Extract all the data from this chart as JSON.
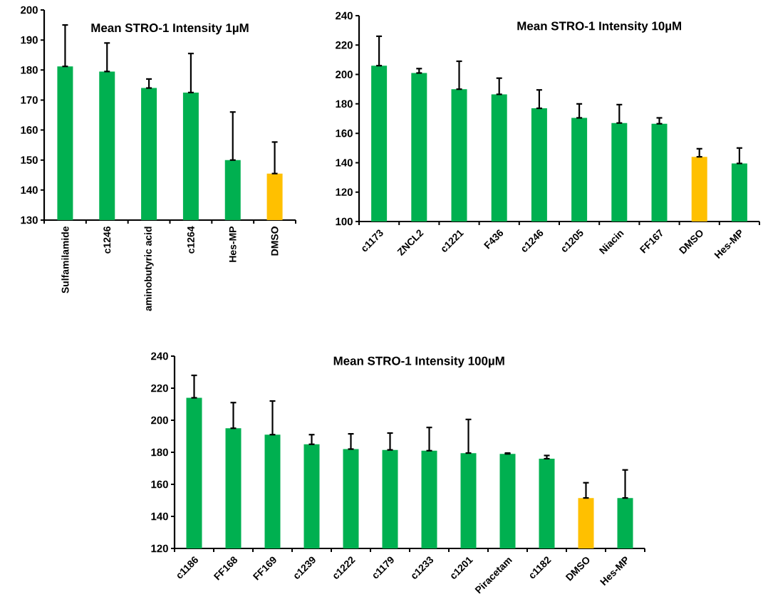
{
  "chart_data": [
    {
      "type": "bar",
      "title": "Mean STRO-1 Intensity 1µM",
      "categories": [
        "Sulfamilamide",
        "c1246",
        "aminobutyric acid",
        "c1264",
        "Hes-MP",
        "DMSO"
      ],
      "values": [
        181.2,
        179.5,
        174,
        172.5,
        150,
        145.5
      ],
      "errors": [
        [
          181.2,
          195
        ],
        [
          179.5,
          189
        ],
        [
          174,
          177
        ],
        [
          172.5,
          185.5
        ],
        [
          150,
          166
        ],
        [
          145.5,
          156
        ]
      ],
      "colors": [
        "#00b050",
        "#00b050",
        "#00b050",
        "#00b050",
        "#00b050",
        "#ffc000"
      ],
      "ylim": [
        130,
        200
      ],
      "yticks": [
        130,
        140,
        150,
        160,
        170,
        180,
        190,
        200
      ]
    },
    {
      "type": "bar",
      "title": "Mean STRO-1 Intensity 10µM",
      "categories": [
        "c1173",
        "ZNCL2",
        "c1221",
        "F436",
        "c1246",
        "c1205",
        "Niacin",
        "FF167",
        "DMSO",
        "Hes-MP"
      ],
      "values": [
        206,
        201,
        190,
        186.5,
        177,
        170.5,
        167,
        166.5,
        144,
        139.5
      ],
      "errors": [
        [
          206,
          226
        ],
        [
          201,
          204
        ],
        [
          190,
          209
        ],
        [
          186.5,
          197.5
        ],
        [
          177,
          189.5
        ],
        [
          170.5,
          180
        ],
        [
          167,
          179.5
        ],
        [
          166.5,
          170.5
        ],
        [
          144,
          149.5
        ],
        [
          139.5,
          150
        ]
      ],
      "colors": [
        "#00b050",
        "#00b050",
        "#00b050",
        "#00b050",
        "#00b050",
        "#00b050",
        "#00b050",
        "#00b050",
        "#ffc000",
        "#00b050"
      ],
      "ylim": [
        100,
        240
      ],
      "yticks": [
        100,
        120,
        140,
        160,
        180,
        200,
        220,
        240
      ]
    },
    {
      "type": "bar",
      "title": "Mean STRO-1 Intensity 100µM",
      "categories": [
        "c1186",
        "FF168",
        "FF169",
        "c1239",
        "c1222",
        "c1179",
        "c1233",
        "c1201",
        "Piracetam",
        "c1182",
        "DMSO",
        "Hes-MP"
      ],
      "values": [
        214,
        195,
        191,
        185,
        182,
        181.5,
        181,
        179.5,
        179,
        176,
        151.5,
        151.5
      ],
      "errors": [
        [
          214,
          228
        ],
        [
          195,
          211
        ],
        [
          191,
          212
        ],
        [
          185,
          191
        ],
        [
          182,
          191.5
        ],
        [
          181.5,
          192
        ],
        [
          181,
          195.5
        ],
        [
          179.5,
          200.5
        ],
        [
          179,
          179.5
        ],
        [
          176,
          178
        ],
        [
          151.5,
          161
        ],
        [
          151.5,
          169
        ]
      ],
      "colors": [
        "#00b050",
        "#00b050",
        "#00b050",
        "#00b050",
        "#00b050",
        "#00b050",
        "#00b050",
        "#00b050",
        "#00b050",
        "#00b050",
        "#ffc000",
        "#00b050"
      ],
      "ylim": [
        120,
        240
      ],
      "yticks": [
        120,
        140,
        160,
        180,
        200,
        220,
        240
      ]
    }
  ]
}
